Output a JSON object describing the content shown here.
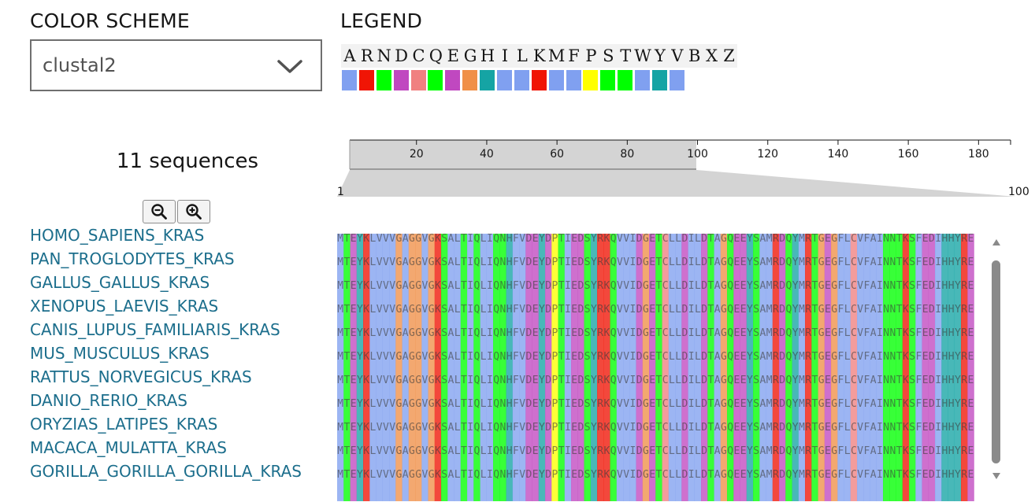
{
  "color_scheme": {
    "title": "COLOR SCHEME",
    "selected": "clustal2"
  },
  "legend": {
    "title": "LEGEND",
    "letters": [
      "A",
      "R",
      "N",
      "D",
      "C",
      "Q",
      "E",
      "G",
      "H",
      "I",
      "L",
      "K",
      "M",
      "F",
      "P",
      "S",
      "T",
      "W",
      "Y",
      "V",
      "B",
      "X",
      "Z"
    ],
    "colors": [
      "#80a0f0",
      "#f01505",
      "#00ff00",
      "#c048c0",
      "#f08080",
      "#00ff00",
      "#c048c0",
      "#f09048",
      "#15a4a4",
      "#80a0f0",
      "#80a0f0",
      "#f01505",
      "#80a0f0",
      "#80a0f0",
      "#ffff00",
      "#00ff00",
      "#00ff00",
      "#80a0f0",
      "#15a4a4",
      "#80a0f0"
    ]
  },
  "sequence_count_label": "11 sequences",
  "zoom": {
    "out_icon": "zoom-out-icon",
    "in_icon": "zoom-in-icon"
  },
  "overview_axis": {
    "ticks": [
      "20",
      "40",
      "60",
      "80",
      "100",
      "120",
      "140",
      "160",
      "180"
    ],
    "selected_range": [
      1,
      100
    ],
    "detail_start_label": "1",
    "detail_end_label": "100"
  },
  "sequences": [
    "HOMO_SAPIENS_KRAS",
    "PAN_TROGLODYTES_KRAS",
    "GALLUS_GALLUS_KRAS",
    "XENOPUS_LAEVIS_KRAS",
    "CANIS_LUPUS_FAMILIARIS_KRAS",
    "MUS_MUSCULUS_KRAS",
    "RATTUS_NORVEGICUS_KRAS",
    "DANIO_RERIO_KRAS",
    "ORYZIAS_LATIPES_KRAS",
    "MACACA_MULATTA_KRAS",
    "GORILLA_GORILLA_GORILLA_KRAS"
  ],
  "alignment_residues": "MTEYKLVVVGAGGVGKSALTIQLIQNHFVDEYDPTIEDSYRKQVVIDGETCLLDILDTAGQEEYSAMRDQYMRTGEGFLCVFAINNTKSFEDIHHYRE"
}
